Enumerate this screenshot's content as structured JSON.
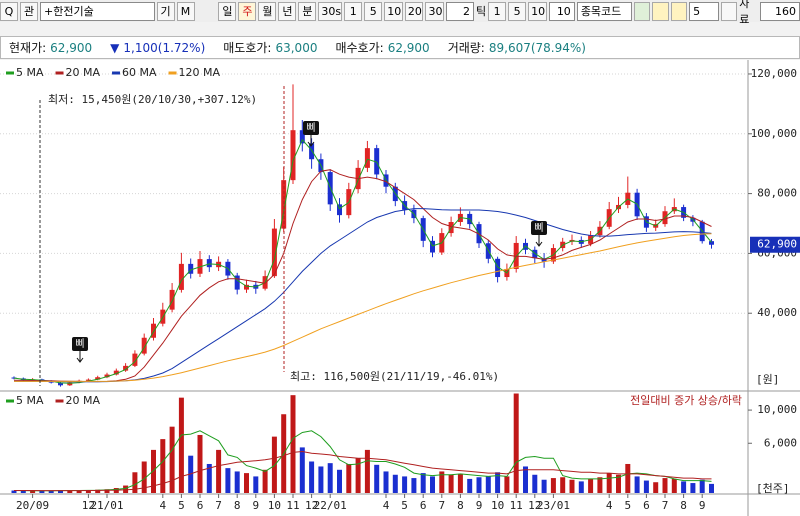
{
  "toolbar": {
    "search": "Q",
    "search_tag": "관",
    "stock": "+한전기술",
    "buttons": [
      "기",
      "M"
    ],
    "periods": [
      "일",
      "주",
      "월",
      "년",
      "분",
      "30s",
      "1",
      "5",
      "10",
      "20",
      "30"
    ],
    "tick_input": "2",
    "tick_label": "틱",
    "tick_buttons": [
      "1",
      "5",
      "10"
    ],
    "tick_count": "10",
    "code_label": "종목코드",
    "count_input": "5",
    "data_label": "자료",
    "data_count": "160"
  },
  "info": [
    {
      "label": "현재가:",
      "value": "62,900"
    },
    {
      "label": "▼",
      "value": "1,100(1.72%)"
    },
    {
      "label": "매도호가:",
      "value": "63,000"
    },
    {
      "label": "매수호가:",
      "value": "62,900"
    },
    {
      "label": "거래량:",
      "value": "89,607(78.94%)"
    }
  ],
  "chart_data": [
    {
      "type": "candlestick",
      "up_color": "#e02424",
      "down_color": "#1b2fd0",
      "grid": true,
      "ylim": [
        15000,
        124000
      ],
      "yticks": [
        {
          "value": 40000,
          "label": "40,000"
        },
        {
          "value": 60000,
          "label": "60,000"
        },
        {
          "value": 80000,
          "label": "80,000"
        },
        {
          "value": 100000,
          "label": "100,000"
        },
        {
          "value": 120000,
          "label": "120,000"
        }
      ],
      "unit_label": "[원]",
      "current_price": {
        "value": 62900,
        "label": "62,900"
      },
      "low_annotation": "최저: 15,450원(20/10/30,+307.12%)",
      "high_annotation": "최고: 116,500원(21/11/19,-46.01%)",
      "signals": [
        "삐",
        "삐",
        "삐"
      ],
      "open": [
        18500,
        18200,
        17600,
        17900,
        17300,
        16800,
        15900,
        16900,
        17400,
        17800,
        18600,
        19500,
        20800,
        22400,
        26500,
        31800,
        36500,
        41200,
        47800,
        56500,
        53200,
        58100,
        55400,
        57200,
        52600,
        47900,
        49500,
        48200,
        52400,
        68300,
        84500,
        101200,
        96800,
        91500,
        87200,
        76400,
        72800,
        81500,
        88600,
        95200,
        86400,
        82300,
        77500,
        74600,
        71800,
        64200,
        60300,
        66800,
        70500,
        73200,
        69800,
        63400,
        58200,
        52100,
        54800,
        63500,
        61200,
        58400,
        57300,
        61800,
        63900,
        64500,
        63200,
        66100,
        68900,
        74800,
        76200,
        80300,
        72400,
        68600,
        69800,
        74100,
        75500,
        71900,
        70600,
        64100
      ],
      "high": [
        18900,
        18500,
        18300,
        18100,
        17600,
        17000,
        17200,
        17800,
        18200,
        19100,
        20100,
        21500,
        23300,
        27600,
        33200,
        38400,
        43500,
        50100,
        60200,
        58300,
        60800,
        59400,
        59000,
        58100,
        53500,
        51200,
        50800,
        54300,
        71500,
        88900,
        116500,
        104600,
        98500,
        93400,
        88100,
        78500,
        83600,
        91200,
        97600,
        96300,
        87900,
        83600,
        79400,
        76300,
        72600,
        65800,
        68400,
        72300,
        75400,
        74100,
        70600,
        64500,
        58900,
        56600,
        65800,
        64900,
        62300,
        60100,
        63100,
        65200,
        66300,
        65700,
        67500,
        70800,
        77200,
        78900,
        85700,
        81600,
        73500,
        71300,
        75800,
        78400,
        76300,
        72800,
        71200,
        64800
      ],
      "low": [
        17900,
        17300,
        17400,
        17000,
        16500,
        15450,
        15700,
        16600,
        17100,
        17600,
        18300,
        19200,
        20400,
        22000,
        25900,
        30900,
        35600,
        40300,
        46900,
        51600,
        52100,
        53800,
        54100,
        51200,
        46300,
        46800,
        46500,
        47600,
        51800,
        67100,
        83200,
        94100,
        88300,
        84600,
        74200,
        70300,
        71700,
        80100,
        87200,
        84800,
        80100,
        75800,
        72900,
        70100,
        62100,
        58700,
        59500,
        65600,
        69200,
        68300,
        61800,
        56700,
        50300,
        50900,
        53600,
        59700,
        56800,
        55200,
        56500,
        60700,
        62800,
        61900,
        62400,
        65300,
        68100,
        73500,
        75100,
        71200,
        67200,
        67500,
        68900,
        73200,
        70800,
        69100,
        63300,
        61600
      ],
      "close": [
        18200,
        17600,
        17900,
        17300,
        16800,
        15900,
        16900,
        17400,
        17800,
        18600,
        19500,
        20800,
        22400,
        26500,
        31800,
        36500,
        41200,
        47800,
        56500,
        53200,
        58100,
        55400,
        57200,
        52600,
        47900,
        49500,
        48200,
        52400,
        68300,
        84500,
        101200,
        96800,
        91500,
        87200,
        76400,
        72800,
        81500,
        88600,
        95200,
        86400,
        82300,
        77500,
        74600,
        71800,
        64200,
        60300,
        66800,
        70500,
        73200,
        69800,
        63400,
        58200,
        52100,
        54800,
        63500,
        61200,
        58400,
        57300,
        61800,
        63900,
        64500,
        63200,
        66100,
        68900,
        74800,
        76200,
        80300,
        72400,
        68600,
        69800,
        74100,
        75500,
        71900,
        70600,
        64100,
        62900
      ],
      "series": [
        {
          "name": "5 MA",
          "color": "#1f9e1f",
          "values": [
            18300,
            17900,
            17800,
            17600,
            17300,
            16700,
            16600,
            16800,
            17300,
            17900,
            18800,
            19800,
            21200,
            23800,
            28500,
            33800,
            38600,
            44000,
            51000,
            54500,
            55500,
            56500,
            56300,
            55000,
            51000,
            49000,
            48800,
            50200,
            58000,
            74000,
            91000,
            98000,
            94500,
            89500,
            82000,
            75000,
            77000,
            84500,
            91500,
            90500,
            84500,
            80000,
            76000,
            73200,
            68000,
            62500,
            63500,
            68500,
            72000,
            71500,
            66500,
            61000,
            55500,
            53500,
            59000,
            62500,
            60000,
            58000,
            59500,
            62800,
            64200,
            63900,
            64600,
            67500,
            71800,
            75500,
            78200,
            76500,
            70500,
            69200,
            72000,
            74800,
            73700,
            71300,
            67500,
            63700
          ]
        },
        {
          "name": "20 MA",
          "color": "#b02020",
          "values": [
            17600,
            17550,
            17500,
            17450,
            17400,
            17300,
            17250,
            17200,
            17150,
            17150,
            17200,
            17400,
            17900,
            19000,
            22000,
            26000,
            30000,
            34500,
            39000,
            42500,
            46000,
            48500,
            50500,
            51500,
            51500,
            51000,
            50500,
            50000,
            53000,
            60000,
            70000,
            78000,
            84000,
            87500,
            88000,
            86500,
            85500,
            85000,
            85500,
            85000,
            84000,
            82000,
            80000,
            78000,
            75000,
            72000,
            70000,
            69000,
            68500,
            68000,
            66500,
            64500,
            61500,
            59500,
            59000,
            59000,
            58500,
            58000,
            58500,
            59500,
            61000,
            62000,
            63000,
            64500,
            66500,
            68500,
            70500,
            71500,
            71500,
            71000,
            71500,
            72500,
            72500,
            72000,
            70500,
            69000
          ]
        },
        {
          "name": "60 MA",
          "color": "#1838b0",
          "values": [
            17200,
            17200,
            17200,
            17200,
            17200,
            17150,
            17100,
            17100,
            17100,
            17100,
            17150,
            17250,
            17400,
            17700,
            18200,
            19000,
            20000,
            21500,
            23500,
            25500,
            27500,
            29500,
            31500,
            33500,
            35500,
            37500,
            39500,
            41500,
            44000,
            47000,
            50500,
            54000,
            57000,
            60000,
            62500,
            64500,
            66500,
            68500,
            70500,
            72000,
            73000,
            74000,
            74500,
            75000,
            75000,
            74800,
            74600,
            74500,
            74500,
            74500,
            74500,
            74300,
            74000,
            73500,
            72800,
            72000,
            71000,
            70000,
            69000,
            68000,
            67200,
            66500,
            66000,
            65800,
            65800,
            66000,
            66300,
            66500,
            66700,
            66800,
            67000,
            67200,
            67300,
            67200,
            67000,
            66700
          ]
        },
        {
          "name": "120 MA",
          "color": "#f0a020",
          "values": [
            17200,
            17200,
            17200,
            17200,
            17200,
            17200,
            17200,
            17200,
            17200,
            17200,
            17200,
            17300,
            17400,
            17600,
            17900,
            18300,
            18800,
            19400,
            20100,
            20900,
            21700,
            22500,
            23300,
            24100,
            24800,
            25500,
            26200,
            27000,
            28000,
            29200,
            30600,
            32000,
            33400,
            34800,
            36000,
            37200,
            38400,
            39600,
            40800,
            42000,
            43200,
            44300,
            45400,
            46500,
            47500,
            48400,
            49300,
            50200,
            51000,
            51800,
            52600,
            53300,
            54000,
            54700,
            55400,
            56000,
            56600,
            57200,
            57800,
            58400,
            59000,
            59600,
            60200,
            60800,
            61500,
            62200,
            62900,
            63500,
            64100,
            64600,
            65100,
            65600,
            66000,
            66300,
            66500,
            66600
          ]
        }
      ]
    },
    {
      "type": "bar",
      "up_color": "#c01818",
      "down_color": "#1b2fd0",
      "categories": [
        null,
        null,
        "20/09",
        null,
        null,
        null,
        null,
        null,
        "12",
        null,
        "21/01",
        null,
        null,
        null,
        null,
        null,
        "4",
        null,
        "5",
        null,
        "6",
        null,
        "7",
        null,
        "8",
        null,
        "9",
        null,
        "10",
        null,
        "11",
        null,
        "12",
        null,
        "22/01",
        null,
        null,
        null,
        null,
        null,
        "4",
        null,
        "5",
        null,
        "6",
        null,
        "7",
        null,
        "8",
        null,
        "9",
        null,
        "10",
        null,
        "11",
        null,
        "12",
        null,
        "23/01",
        null,
        null,
        null,
        null,
        null,
        "4",
        null,
        "5",
        null,
        "6",
        null,
        "7",
        null,
        "8",
        null,
        "9",
        null
      ],
      "ylim": [
        0,
        11700
      ],
      "yticks": [
        {
          "value": 6000,
          "label": "6,000"
        },
        {
          "value": 10000,
          "label": "10,000"
        }
      ],
      "unit_label": "[천주]",
      "note": "전일대비 증가 상승/하락",
      "values": [
        300,
        250,
        280,
        260,
        300,
        350,
        320,
        280,
        300,
        400,
        450,
        600,
        900,
        2500,
        3800,
        5200,
        6500,
        8000,
        11500,
        4500,
        7000,
        3500,
        5200,
        3000,
        2600,
        2400,
        2000,
        2800,
        6800,
        9500,
        11800,
        5500,
        3800,
        3200,
        3600,
        2800,
        3500,
        4200,
        5200,
        3400,
        2600,
        2200,
        2000,
        1800,
        2400,
        2000,
        2600,
        2200,
        2300,
        1700,
        1900,
        2000,
        2500,
        2000,
        12000,
        3200,
        2200,
        1600,
        1800,
        1900,
        1600,
        1400,
        1700,
        1900,
        2400,
        2200,
        3500,
        2000,
        1500,
        1300,
        1800,
        1700,
        1400,
        1200,
        1600,
        1100
      ],
      "series": [
        {
          "name": "5 MA",
          "color": "#1f9e1f",
          "values": [
            300,
            290,
            280,
            270,
            280,
            290,
            300,
            300,
            310,
            330,
            370,
            430,
            560,
            1000,
            1700,
            2700,
            3800,
            5200,
            7000,
            7100,
            7500,
            6900,
            6300,
            4600,
            4300,
            3300,
            3000,
            2600,
            3300,
            4700,
            6600,
            7300,
            7500,
            6800,
            5600,
            4000,
            3400,
            3500,
            3900,
            3800,
            3800,
            3500,
            3100,
            2400,
            2200,
            2100,
            2200,
            2200,
            2300,
            2200,
            2100,
            2000,
            2100,
            2000,
            3700,
            4300,
            4400,
            4200,
            4200,
            2100,
            1800,
            1700,
            1700,
            1700,
            1800,
            1900,
            2300,
            2400,
            2300,
            2100,
            2000,
            1700,
            1500,
            1500,
            1500,
            1400
          ]
        },
        {
          "name": "20 MA",
          "color": "#b02020",
          "values": [
            300,
            300,
            300,
            290,
            290,
            290,
            290,
            290,
            300,
            300,
            320,
            340,
            380,
            460,
            620,
            860,
            1150,
            1500,
            2000,
            2300,
            2700,
            3000,
            3300,
            3500,
            3700,
            3800,
            3900,
            4000,
            4200,
            4500,
            4900,
            5000,
            4800,
            4700,
            4600,
            4400,
            4300,
            4200,
            4200,
            4100,
            4000,
            3800,
            3600,
            3400,
            3200,
            3000,
            2900,
            2800,
            2700,
            2600,
            2500,
            2400,
            2400,
            2300,
            2700,
            2800,
            2800,
            2800,
            2800,
            2700,
            2600,
            2500,
            2500,
            2400,
            2400,
            2300,
            2300,
            2300,
            2200,
            2100,
            2000,
            1900,
            1800,
            1800,
            1700,
            1700
          ]
        }
      ]
    }
  ]
}
